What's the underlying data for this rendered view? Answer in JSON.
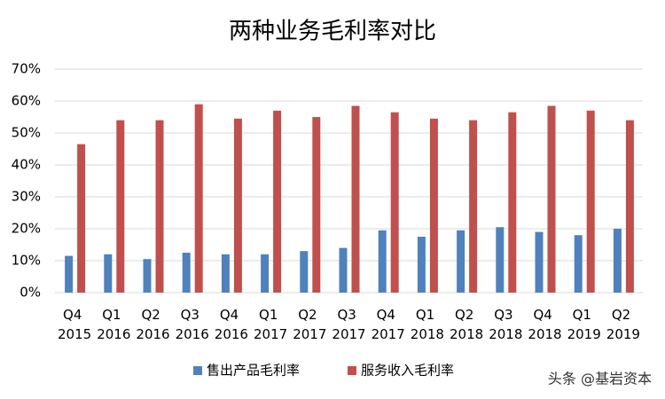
{
  "chart_data": {
    "type": "bar",
    "title": "两种业务毛利率对比",
    "categories": [
      "Q4 2015",
      "Q1 2016",
      "Q2 2016",
      "Q3 2016",
      "Q4 2016",
      "Q1 2017",
      "Q2 2017",
      "Q3 2017",
      "Q4 2017",
      "Q1 2018",
      "Q2 2018",
      "Q3 2018",
      "Q4 2018",
      "Q1 2019",
      "Q2 2019"
    ],
    "series": [
      {
        "name": "售出产品毛利率",
        "color": "#4f81bd",
        "values": [
          11.5,
          12,
          10.5,
          12.5,
          12,
          12,
          13,
          14,
          19.5,
          17.5,
          19.5,
          20.5,
          19,
          18,
          20
        ]
      },
      {
        "name": "服务收入毛利率",
        "color": "#c0504d",
        "values": [
          46.5,
          54,
          54,
          59,
          54.5,
          57,
          55,
          58.5,
          56.5,
          54.5,
          54,
          56.5,
          58.5,
          57,
          54
        ]
      }
    ],
    "ylim": [
      0,
      70
    ],
    "yticks": [
      {
        "value": 0,
        "label": "0%"
      },
      {
        "value": 10,
        "label": "10%"
      },
      {
        "value": 20,
        "label": "20%"
      },
      {
        "value": 30,
        "label": "30%"
      },
      {
        "value": 40,
        "label": "40%"
      },
      {
        "value": 50,
        "label": "50%"
      },
      {
        "value": 60,
        "label": "60%"
      },
      {
        "value": 70,
        "label": "70%"
      }
    ],
    "grid": true,
    "legend": "bottom",
    "watermark": "头条 @基岩资本"
  }
}
